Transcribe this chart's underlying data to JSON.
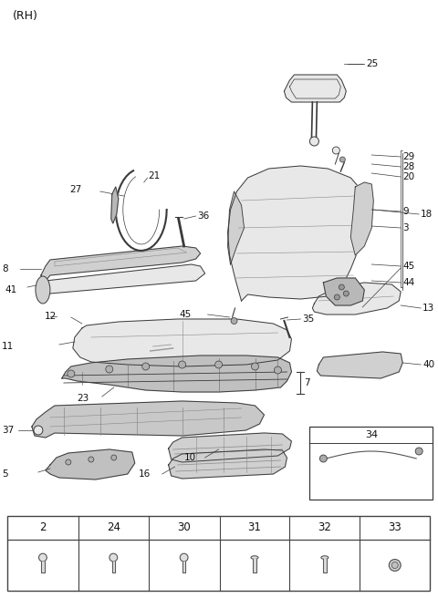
{
  "title": "(RH)",
  "bg_color": "#ffffff",
  "fig_width": 4.8,
  "fig_height": 6.56,
  "dpi": 100,
  "lc": "#3a3a3a",
  "lw": 0.7,
  "fill_light": "#e8e8e8",
  "fill_mid": "#d0d0d0",
  "fill_dark": "#b8b8b8"
}
